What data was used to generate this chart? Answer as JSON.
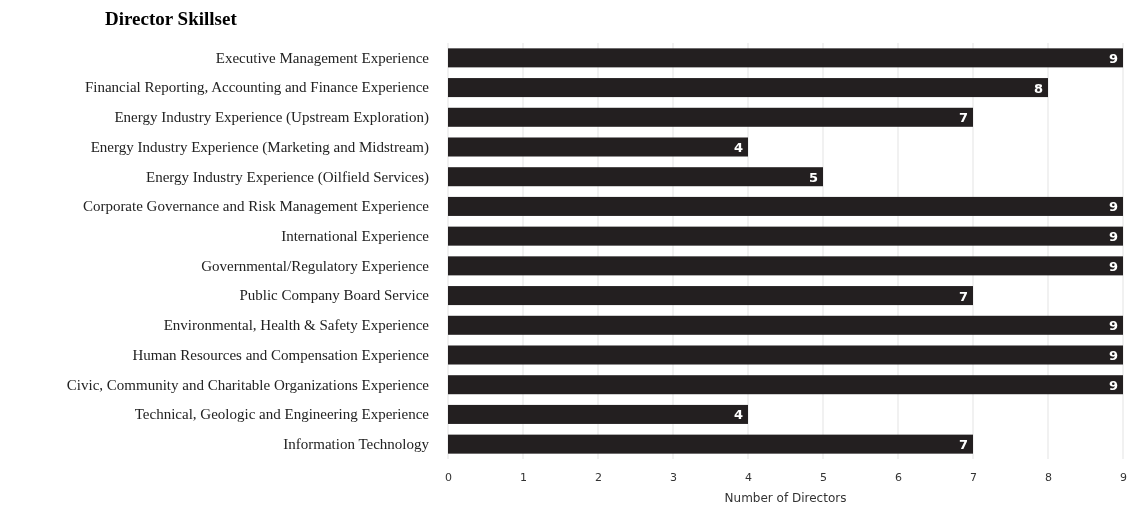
{
  "chart_data": {
    "type": "bar",
    "orientation": "horizontal",
    "title": "Director Skillset",
    "xlabel": "Number of Directors",
    "categories": [
      "Executive Management Experience",
      "Financial Reporting, Accounting and Finance Experience",
      "Energy Industry Experience (Upstream Exploration)",
      "Energy Industry Experience (Marketing and Midstream)",
      "Energy Industry Experience (Oilfield Services)",
      "Corporate Governance and Risk Management Experience",
      "International Experience",
      "Governmental/Regulatory Experience",
      "Public Company Board Service",
      "Environmental, Health & Safety Experience",
      "Human Resources and Compensation Experience",
      "Civic, Community and Charitable Organizations Experience",
      "Technical, Geologic and Engineering Experience",
      "Information Technology"
    ],
    "values": [
      9,
      8,
      7,
      4,
      5,
      9,
      9,
      9,
      7,
      9,
      9,
      9,
      4,
      7
    ],
    "color": "#231f20",
    "xlim": [
      0,
      9
    ],
    "xticks": [
      0,
      1,
      2,
      3,
      4,
      5,
      6,
      7,
      8,
      9
    ],
    "grid": "x",
    "data_labels": true
  }
}
